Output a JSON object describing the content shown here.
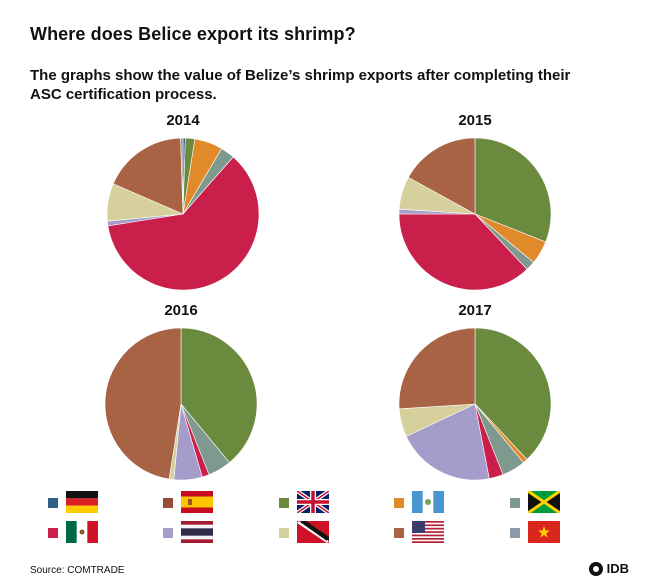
{
  "title": "Where does Belice export its shrimp?",
  "subtitle": "The graphs show the value of Belize’s shrimp exports after completing their ASC certification process.",
  "source": "Source: COMTRADE",
  "logo_text": "IDB",
  "countries": [
    {
      "flag": "germany",
      "color": "#2f5f82"
    },
    {
      "flag": "spain",
      "color": "#9a4a3a"
    },
    {
      "flag": "united-kingdom",
      "color": "#6a8a3e"
    },
    {
      "flag": "guatemala",
      "color": "#e08a2a"
    },
    {
      "flag": "jamaica",
      "color": "#7e9a8e"
    },
    {
      "flag": "mexico",
      "color": "#c91f4a"
    },
    {
      "flag": "thailand",
      "color": "#a59ccc"
    },
    {
      "flag": "trinidad-and-tobago",
      "color": "#d6d09c"
    },
    {
      "flag": "united-states",
      "color": "#a86244"
    },
    {
      "flag": "vietnam",
      "color": "#8a9aa8"
    }
  ],
  "chart_data": [
    {
      "type": "pie",
      "title": "2014",
      "labels": [
        "Germany",
        "Spain",
        "United Kingdom",
        "Guatemala",
        "Jamaica",
        "Mexico",
        "Thailand",
        "Trinidad and Tobago",
        "United States",
        "Vietnam"
      ],
      "values": [
        0.5,
        0,
        2,
        6,
        3,
        61,
        1,
        8,
        18,
        0.5
      ]
    },
    {
      "type": "pie",
      "title": "2015",
      "labels": [
        "Germany",
        "Spain",
        "United Kingdom",
        "Guatemala",
        "Jamaica",
        "Mexico",
        "Thailand",
        "Trinidad and Tobago",
        "United States",
        "Vietnam"
      ],
      "values": [
        0,
        0,
        31,
        5,
        2,
        37,
        1,
        7,
        17,
        0
      ]
    },
    {
      "type": "pie",
      "title": "2016",
      "labels": [
        "Germany",
        "Spain",
        "United Kingdom",
        "Guatemala",
        "Jamaica",
        "Mexico",
        "Thailand",
        "Trinidad and Tobago",
        "United States",
        "Vietnam"
      ],
      "values": [
        0,
        0,
        39,
        0,
        5,
        1.5,
        6,
        1,
        47.5,
        0
      ]
    },
    {
      "type": "pie",
      "title": "2017",
      "labels": [
        "Germany",
        "Spain",
        "United Kingdom",
        "Guatemala",
        "Jamaica",
        "Mexico",
        "Thailand",
        "Trinidad and Tobago",
        "United States",
        "Vietnam"
      ],
      "values": [
        0,
        0,
        38,
        1,
        5,
        3,
        21,
        6,
        26,
        0
      ]
    }
  ]
}
